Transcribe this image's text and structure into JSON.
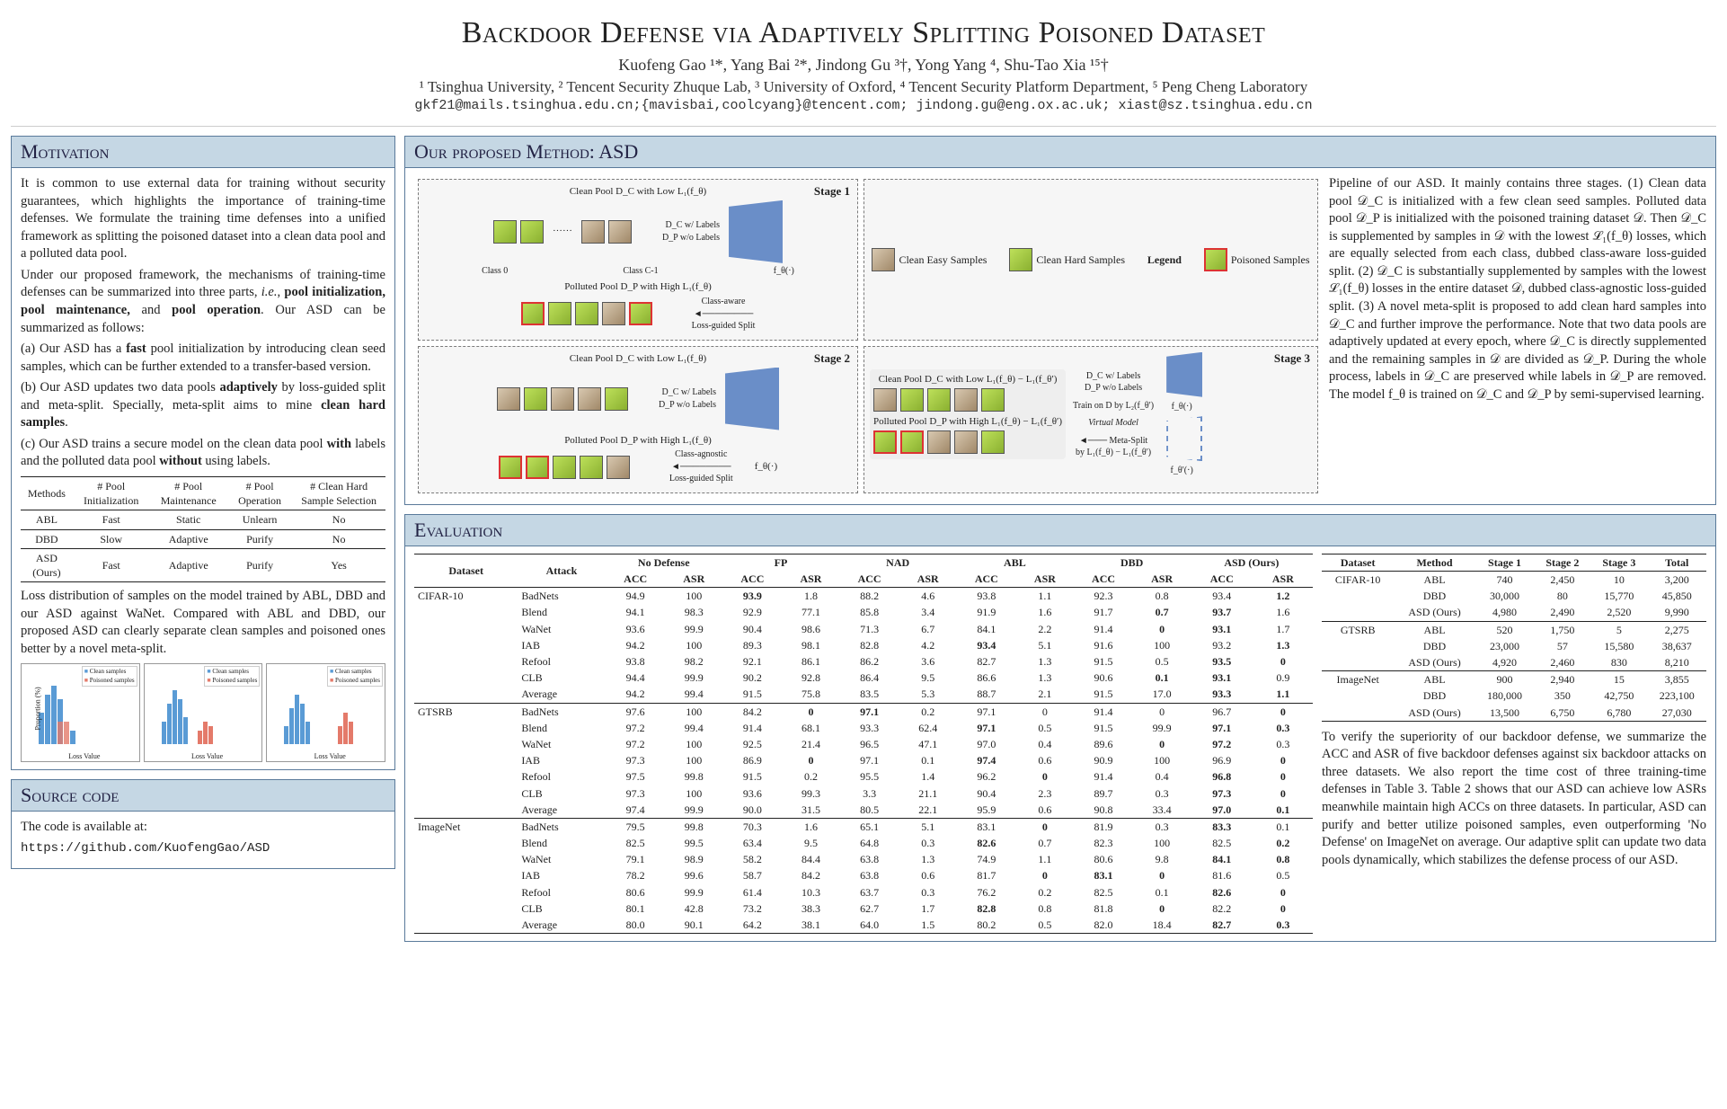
{
  "header": {
    "title": "Backdoor Defense via Adaptively Splitting Poisoned Dataset",
    "authors": "Kuofeng Gao ¹*, Yang Bai ²*, Jindong Gu ³†, Yong Yang ⁴, Shu-Tao Xia ¹⁵†",
    "affil": "¹ Tsinghua University, ² Tencent Security Zhuque Lab, ³ University of Oxford, ⁴ Tencent Security Platform Department, ⁵ Peng Cheng Laboratory",
    "emails": "gkf21@mails.tsinghua.edu.cn;{mavisbai,coolcyang}@tencent.com; jindong.gu@eng.ox.ac.uk; xiast@sz.tsinghua.edu.cn"
  },
  "motivation": {
    "title": "Motivation",
    "p1": "It is common to use external data for training without security guarantees, which highlights the importance of training-time defenses. We formulate the training time defenses into a unified framework as splitting the poisoned dataset into a clean data pool and a polluted data pool.",
    "p2a": "Under our proposed framework, the mechanisms of training-time defenses can be summarized into three parts, ",
    "p2b": "i.e.",
    "p2c": ", ",
    "p2d": "pool initialization, pool maintenance,",
    "p2e": " and ",
    "p2f": "pool operation",
    "p2g": ". Our ASD can be summarized as follows:",
    "pa_a": "(a) Our ASD has a ",
    "pa_b": "fast",
    "pa_c": " pool initialization by introducing clean seed samples, which can be further extended to a transfer-based version.",
    "pb_a": "(b) Our ASD updates two data pools ",
    "pb_b": "adaptively",
    "pb_c": " by loss-guided split and meta-split. Specially, meta-split aims to mine ",
    "pb_d": "clean hard samples",
    "pb_e": ".",
    "pc_a": "(c) Our ASD trains a secure model on the clean data pool ",
    "pc_b": "with",
    "pc_c": " labels and the polluted data pool ",
    "pc_d": "without",
    "pc_e": " using labels.",
    "table": {
      "head": [
        "Methods",
        "# Pool Initialization",
        "# Pool Maintenance",
        "# Pool Operation",
        "# Clean Hard Sample Selection"
      ],
      "rows": [
        [
          "ABL",
          "Fast",
          "Static",
          "Unlearn",
          "No"
        ],
        [
          "DBD",
          "Slow",
          "Adaptive",
          "Purify",
          "No"
        ],
        [
          "ASD (Ours)",
          "Fast",
          "Adaptive",
          "Purify",
          "Yes"
        ]
      ]
    },
    "caption": "Loss distribution of samples on the model trained by ABL, DBD and our ASD against WaNet. Compared with ABL and DBD, our proposed ASD can clearly separate clean samples and poisoned ones better by a novel meta-split.",
    "chart_legend": [
      "Clean samples",
      "Poisoned samples"
    ],
    "chart_xlabel": "Loss Value",
    "chart_ylabel": "Proportion (%)",
    "chart_ticks": [
      "0",
      "2",
      "4",
      "6",
      "8",
      "10",
      "12"
    ],
    "chart_colors": {
      "clean": "#5a9bd5",
      "poison": "#e47a6a"
    }
  },
  "source": {
    "title": "Source code",
    "label": "The code is available at:",
    "url": "https://github.com/KuofengGao/ASD"
  },
  "method": {
    "title": "Our proposed Method: ASD",
    "stage1": {
      "label": "Stage 1",
      "clean": "Clean Pool D_C with Low L₁(f_θ)",
      "classes": [
        "Class 0",
        "Class C-1"
      ],
      "polluted": "Polluted Pool D_P with High L₁(f_θ)",
      "dc": "D_C w/ Labels",
      "dp": "D_P w/o Labels",
      "f": "f_θ(·)",
      "split1": "Class-aware",
      "split2": "Loss-guided Split"
    },
    "stage2": {
      "label": "Stage 2",
      "clean": "Clean Pool D_C with Low L₁(f_θ)",
      "polluted": "Polluted Pool D_P with High L₁(f_θ)",
      "dc": "D_C w/ Labels",
      "dp": "D_P w/o Labels",
      "f": "f_θ(·)",
      "split1": "Class-agnostic",
      "split2": "Loss-guided Split"
    },
    "stage3": {
      "label": "Stage 3",
      "clean": "Clean Pool D_C with Low L₁(f_θ) − L₁(f_θ′)",
      "polluted": "Polluted Pool D_P with High L₁(f_θ) − L₁(f_θ′)",
      "dc": "D_C w/ Labels",
      "dp": "D_P w/o Labels",
      "train": "Train on D by L₂(f_θ′)",
      "virtual": "Virtual Model",
      "f": "f_θ(·)",
      "fp": "f_θ′(·)",
      "meta1": "Meta-Split",
      "meta2": "by L₁(f_θ) − L₁(f_θ′)"
    },
    "legend": {
      "title": "Legend",
      "easy": "Clean Easy Samples",
      "hard": "Clean Hard Samples",
      "poison": "Poisoned Samples"
    },
    "desc": "Pipeline of our ASD. It mainly contains three stages. (1) Clean data pool 𝒟_C is initialized with a few clean seed samples. Polluted data pool 𝒟_P is initialized with the poisoned training dataset 𝒟. Then 𝒟_C is supplemented by samples in 𝒟 with the lowest ℒ₁(f_θ) losses, which are equally selected from each class, dubbed class-aware loss-guided split. (2) 𝒟_C is substantially supplemented by samples with the lowest ℒ₁(f_θ) losses in the entire dataset 𝒟, dubbed class-agnostic loss-guided split. (3) A novel meta-split is proposed to add clean hard samples into 𝒟_C and further improve the performance. Note that two data pools are adaptively updated at every epoch, where 𝒟_C is directly supplemented and the remaining samples in 𝒟 are divided as 𝒟_P. During the whole process, labels in 𝒟_C are preserved while labels in 𝒟_P are removed. The model f_θ is trained on 𝒟_C and 𝒟_P by semi-supervised learning."
  },
  "evaluation": {
    "title": "Evaluation",
    "main_head_top": [
      "Dataset",
      "Attack",
      "No Defense",
      "FP",
      "NAD",
      "ABL",
      "DBD",
      "ASD (Ours)"
    ],
    "main_head_sub": [
      "ACC",
      "ASR",
      "ACC",
      "ASR",
      "ACC",
      "ASR",
      "ACC",
      "ASR",
      "ACC",
      "ASR",
      "ACC",
      "ASR"
    ],
    "main_rows": [
      {
        "ds": "CIFAR-10",
        "atk": "BadNets",
        "v": [
          "94.9",
          "100",
          "93.9",
          "1.8",
          "88.2",
          "4.6",
          "93.8",
          "1.1",
          "92.3",
          "0.8",
          "93.4",
          "1.2"
        ],
        "b": [
          2,
          11
        ]
      },
      {
        "ds": "",
        "atk": "Blend",
        "v": [
          "94.1",
          "98.3",
          "92.9",
          "77.1",
          "85.8",
          "3.4",
          "91.9",
          "1.6",
          "91.7",
          "0.7",
          "93.7",
          "1.6"
        ],
        "b": [
          9,
          10
        ]
      },
      {
        "ds": "",
        "atk": "WaNet",
        "v": [
          "93.6",
          "99.9",
          "90.4",
          "98.6",
          "71.3",
          "6.7",
          "84.1",
          "2.2",
          "91.4",
          "0",
          "93.1",
          "1.7"
        ],
        "b": [
          9,
          10
        ]
      },
      {
        "ds": "",
        "atk": "IAB",
        "v": [
          "94.2",
          "100",
          "89.3",
          "98.1",
          "82.8",
          "4.2",
          "93.4",
          "5.1",
          "91.6",
          "100",
          "93.2",
          "1.3"
        ],
        "b": [
          6,
          11
        ]
      },
      {
        "ds": "",
        "atk": "Refool",
        "v": [
          "93.8",
          "98.2",
          "92.1",
          "86.1",
          "86.2",
          "3.6",
          "82.7",
          "1.3",
          "91.5",
          "0.5",
          "93.5",
          "0"
        ],
        "b": [
          10,
          11
        ]
      },
      {
        "ds": "",
        "atk": "CLB",
        "v": [
          "94.4",
          "99.9",
          "90.2",
          "92.8",
          "86.4",
          "9.5",
          "86.6",
          "1.3",
          "90.6",
          "0.1",
          "93.1",
          "0.9"
        ],
        "b": [
          9,
          10
        ]
      },
      {
        "ds": "",
        "atk": "Average",
        "v": [
          "94.2",
          "99.4",
          "91.5",
          "75.8",
          "83.5",
          "5.3",
          "88.7",
          "2.1",
          "91.5",
          "17.0",
          "93.3",
          "1.1"
        ],
        "b": [
          10,
          11
        ]
      },
      {
        "ds": "GTSRB",
        "atk": "BadNets",
        "v": [
          "97.6",
          "100",
          "84.2",
          "0",
          "97.1",
          "0.2",
          "97.1",
          "0",
          "91.4",
          "0",
          "96.7",
          "0"
        ],
        "b": [
          3,
          4,
          11
        ]
      },
      {
        "ds": "",
        "atk": "Blend",
        "v": [
          "97.2",
          "99.4",
          "91.4",
          "68.1",
          "93.3",
          "62.4",
          "97.1",
          "0.5",
          "91.5",
          "99.9",
          "97.1",
          "0.3"
        ],
        "b": [
          6,
          10,
          11
        ]
      },
      {
        "ds": "",
        "atk": "WaNet",
        "v": [
          "97.2",
          "100",
          "92.5",
          "21.4",
          "96.5",
          "47.1",
          "97.0",
          "0.4",
          "89.6",
          "0",
          "97.2",
          "0.3"
        ],
        "b": [
          9,
          10
        ]
      },
      {
        "ds": "",
        "atk": "IAB",
        "v": [
          "97.3",
          "100",
          "86.9",
          "0",
          "97.1",
          "0.1",
          "97.4",
          "0.6",
          "90.9",
          "100",
          "96.9",
          "0"
        ],
        "b": [
          3,
          6,
          11
        ]
      },
      {
        "ds": "",
        "atk": "Refool",
        "v": [
          "97.5",
          "99.8",
          "91.5",
          "0.2",
          "95.5",
          "1.4",
          "96.2",
          "0",
          "91.4",
          "0.4",
          "96.8",
          "0"
        ],
        "b": [
          7,
          10,
          11
        ]
      },
      {
        "ds": "",
        "atk": "CLB",
        "v": [
          "97.3",
          "100",
          "93.6",
          "99.3",
          "3.3",
          "21.1",
          "90.4",
          "2.3",
          "89.7",
          "0.3",
          "97.3",
          "0"
        ],
        "b": [
          10,
          11
        ]
      },
      {
        "ds": "",
        "atk": "Average",
        "v": [
          "97.4",
          "99.9",
          "90.0",
          "31.5",
          "80.5",
          "22.1",
          "95.9",
          "0.6",
          "90.8",
          "33.4",
          "97.0",
          "0.1"
        ],
        "b": [
          10,
          11
        ]
      },
      {
        "ds": "ImageNet",
        "atk": "BadNets",
        "v": [
          "79.5",
          "99.8",
          "70.3",
          "1.6",
          "65.1",
          "5.1",
          "83.1",
          "0",
          "81.9",
          "0.3",
          "83.3",
          "0.1"
        ],
        "b": [
          7,
          10
        ]
      },
      {
        "ds": "",
        "atk": "Blend",
        "v": [
          "82.5",
          "99.5",
          "63.4",
          "9.5",
          "64.8",
          "0.3",
          "82.6",
          "0.7",
          "82.3",
          "100",
          "82.5",
          "0.2"
        ],
        "b": [
          6,
          11
        ]
      },
      {
        "ds": "",
        "atk": "WaNet",
        "v": [
          "79.1",
          "98.9",
          "58.2",
          "84.4",
          "63.8",
          "1.3",
          "74.9",
          "1.1",
          "80.6",
          "9.8",
          "84.1",
          "0.8"
        ],
        "b": [
          10,
          11
        ]
      },
      {
        "ds": "",
        "atk": "IAB",
        "v": [
          "78.2",
          "99.6",
          "58.7",
          "84.2",
          "63.8",
          "0.6",
          "81.7",
          "0",
          "83.1",
          "0",
          "81.6",
          "0.5"
        ],
        "b": [
          7,
          8,
          9
        ]
      },
      {
        "ds": "",
        "atk": "Refool",
        "v": [
          "80.6",
          "99.9",
          "61.4",
          "10.3",
          "63.7",
          "0.3",
          "76.2",
          "0.2",
          "82.5",
          "0.1",
          "82.6",
          "0"
        ],
        "b": [
          10,
          11
        ]
      },
      {
        "ds": "",
        "atk": "CLB",
        "v": [
          "80.1",
          "42.8",
          "73.2",
          "38.3",
          "62.7",
          "1.7",
          "82.8",
          "0.8",
          "81.8",
          "0",
          "82.2",
          "0"
        ],
        "b": [
          6,
          9,
          11
        ]
      },
      {
        "ds": "",
        "atk": "Average",
        "v": [
          "80.0",
          "90.1",
          "64.2",
          "38.1",
          "64.0",
          "1.5",
          "80.2",
          "0.5",
          "82.0",
          "18.4",
          "82.7",
          "0.3"
        ],
        "b": [
          10,
          11
        ]
      }
    ],
    "time_head": [
      "Dataset",
      "Method",
      "Stage 1",
      "Stage 2",
      "Stage 3",
      "Total"
    ],
    "time_rows": [
      [
        "CIFAR-10",
        "ABL",
        "740",
        "2,450",
        "10",
        "3,200"
      ],
      [
        "",
        "DBD",
        "30,000",
        "80",
        "15,770",
        "45,850"
      ],
      [
        "",
        "ASD (Ours)",
        "4,980",
        "2,490",
        "2,520",
        "9,990"
      ],
      [
        "GTSRB",
        "ABL",
        "520",
        "1,750",
        "5",
        "2,275"
      ],
      [
        "",
        "DBD",
        "23,000",
        "57",
        "15,580",
        "38,637"
      ],
      [
        "",
        "ASD (Ours)",
        "4,920",
        "2,460",
        "830",
        "8,210"
      ],
      [
        "ImageNet",
        "ABL",
        "900",
        "2,940",
        "15",
        "3,855"
      ],
      [
        "",
        "DBD",
        "180,000",
        "350",
        "42,750",
        "223,100"
      ],
      [
        "",
        "ASD (Ours)",
        "13,500",
        "6,750",
        "6,780",
        "27,030"
      ]
    ],
    "desc": "To verify the superiority of our backdoor defense, we summarize the ACC and ASR of five backdoor defenses against six backdoor attacks on three datasets. We also report the time cost of three training-time defenses in Table 3. Table 2 shows that our ASD can achieve low ASRs meanwhile maintain high ACCs on three datasets. In particular, ASD can purify and better utilize poisoned samples, even outperforming 'No Defense' on ImageNet on average. Our adaptive split can update two data pools dynamically, which stabilizes the defense process of our ASD."
  }
}
